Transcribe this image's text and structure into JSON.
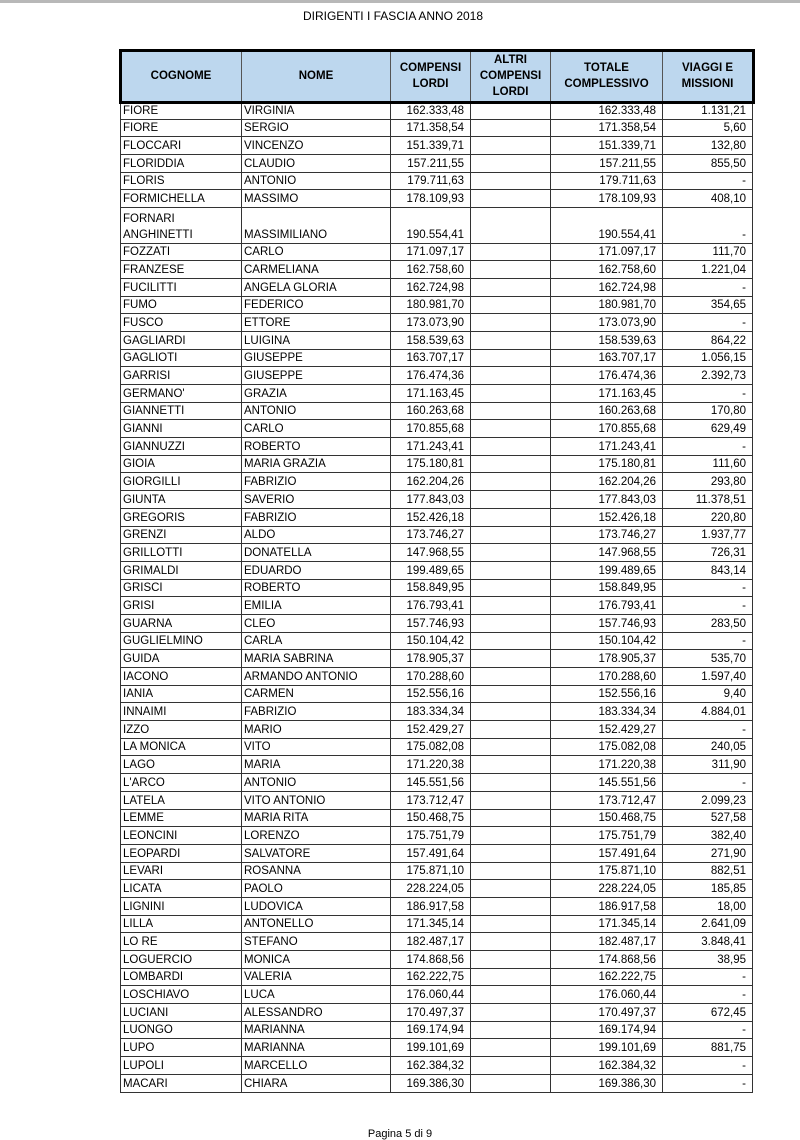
{
  "document": {
    "title": "DIRIGENTI I FASCIA ANNO 2018",
    "footer": "Pagina 5 di 9",
    "header_color": "#bdd7ee"
  },
  "table": {
    "columns": [
      "COGNOME",
      "NOME",
      "COMPENSI LORDI",
      "ALTRI COMPENSI LORDI",
      "TOTALE COMPLESSIVO",
      "VIAGGI E MISSIONI"
    ],
    "rows": [
      [
        "FIORE",
        "VIRGINIA",
        "162.333,48",
        "",
        "162.333,48",
        "1.131,21"
      ],
      [
        "FIORE",
        "SERGIO",
        "171.358,54",
        "",
        "171.358,54",
        "5,60"
      ],
      [
        "FLOCCARI",
        "VINCENZO",
        "151.339,71",
        "",
        "151.339,71",
        "132,80"
      ],
      [
        "FLORIDDIA",
        "CLAUDIO",
        "157.211,55",
        "",
        "157.211,55",
        "855,50"
      ],
      [
        "FLORIS",
        "ANTONIO",
        "179.711,63",
        "",
        "179.711,63",
        "-"
      ],
      [
        "FORMICHELLA",
        "MASSIMO",
        "178.109,93",
        "",
        "178.109,93",
        "408,10"
      ],
      [
        "FORNARI ANGHINETTI",
        "MASSIMILIANO",
        "190.554,41",
        "",
        "190.554,41",
        "-"
      ],
      [
        "FOZZATI",
        "CARLO",
        "171.097,17",
        "",
        "171.097,17",
        "111,70"
      ],
      [
        "FRANZESE",
        "CARMELIANA",
        "162.758,60",
        "",
        "162.758,60",
        "1.221,04"
      ],
      [
        "FUCILITTI",
        "ANGELA GLORIA",
        "162.724,98",
        "",
        "162.724,98",
        "-"
      ],
      [
        "FUMO",
        "FEDERICO",
        "180.981,70",
        "",
        "180.981,70",
        "354,65"
      ],
      [
        "FUSCO",
        "ETTORE",
        "173.073,90",
        "",
        "173.073,90",
        "-"
      ],
      [
        "GAGLIARDI",
        "LUIGINA",
        "158.539,63",
        "",
        "158.539,63",
        "864,22"
      ],
      [
        "GAGLIOTI",
        "GIUSEPPE",
        "163.707,17",
        "",
        "163.707,17",
        "1.056,15"
      ],
      [
        "GARRISI",
        "GIUSEPPE",
        "176.474,36",
        "",
        "176.474,36",
        "2.392,73"
      ],
      [
        "GERMANO'",
        "GRAZIA",
        "171.163,45",
        "",
        "171.163,45",
        "-"
      ],
      [
        "GIANNETTI",
        "ANTONIO",
        "160.263,68",
        "",
        "160.263,68",
        "170,80"
      ],
      [
        "GIANNI",
        "CARLO",
        "170.855,68",
        "",
        "170.855,68",
        "629,49"
      ],
      [
        "GIANNUZZI",
        "ROBERTO",
        "171.243,41",
        "",
        "171.243,41",
        "-"
      ],
      [
        "GIOIA",
        "MARIA GRAZIA",
        "175.180,81",
        "",
        "175.180,81",
        "111,60"
      ],
      [
        "GIORGILLI",
        "FABRIZIO",
        "162.204,26",
        "",
        "162.204,26",
        "293,80"
      ],
      [
        "GIUNTA",
        "SAVERIO",
        "177.843,03",
        "",
        "177.843,03",
        "11.378,51"
      ],
      [
        "GREGORIS",
        "FABRIZIO",
        "152.426,18",
        "",
        "152.426,18",
        "220,80"
      ],
      [
        "GRENZI",
        "ALDO",
        "173.746,27",
        "",
        "173.746,27",
        "1.937,77"
      ],
      [
        "GRILLOTTI",
        "DONATELLA",
        "147.968,55",
        "",
        "147.968,55",
        "726,31"
      ],
      [
        "GRIMALDI",
        "EDUARDO",
        "199.489,65",
        "",
        "199.489,65",
        "843,14"
      ],
      [
        "GRISCI",
        "ROBERTO",
        "158.849,95",
        "",
        "158.849,95",
        "-"
      ],
      [
        "GRISI",
        "EMILIA",
        "176.793,41",
        "",
        "176.793,41",
        "-"
      ],
      [
        "GUARNA",
        "CLEO",
        "157.746,93",
        "",
        "157.746,93",
        "283,50"
      ],
      [
        "GUGLIELMINO",
        "CARLA",
        "150.104,42",
        "",
        "150.104,42",
        "-"
      ],
      [
        "GUIDA",
        "MARIA SABRINA",
        "178.905,37",
        "",
        "178.905,37",
        "535,70"
      ],
      [
        "IACONO",
        "ARMANDO ANTONIO",
        "170.288,60",
        "",
        "170.288,60",
        "1.597,40"
      ],
      [
        "IANIA",
        "CARMEN",
        "152.556,16",
        "",
        "152.556,16",
        "9,40"
      ],
      [
        "INNAIMI",
        "FABRIZIO",
        "183.334,34",
        "",
        "183.334,34",
        "4.884,01"
      ],
      [
        "IZZO",
        "MARIO",
        "152.429,27",
        "",
        "152.429,27",
        "-"
      ],
      [
        "LA MONICA",
        "VITO",
        "175.082,08",
        "",
        "175.082,08",
        "240,05"
      ],
      [
        "LAGO",
        "MARIA",
        "171.220,38",
        "",
        "171.220,38",
        "311,90"
      ],
      [
        "L'ARCO",
        "ANTONIO",
        "145.551,56",
        "",
        "145.551,56",
        "-"
      ],
      [
        "LATELA",
        "VITO ANTONIO",
        "173.712,47",
        "",
        "173.712,47",
        "2.099,23"
      ],
      [
        "LEMME",
        "MARIA RITA",
        "150.468,75",
        "",
        "150.468,75",
        "527,58"
      ],
      [
        "LEONCINI",
        "LORENZO",
        "175.751,79",
        "",
        "175.751,79",
        "382,40"
      ],
      [
        "LEOPARDI",
        "SALVATORE",
        "157.491,64",
        "",
        "157.491,64",
        "271,90"
      ],
      [
        "LEVARI",
        "ROSANNA",
        "175.871,10",
        "",
        "175.871,10",
        "882,51"
      ],
      [
        "LICATA",
        "PAOLO",
        "228.224,05",
        "",
        "228.224,05",
        "185,85"
      ],
      [
        "LIGNINI",
        "LUDOVICA",
        "186.917,58",
        "",
        "186.917,58",
        "18,00"
      ],
      [
        "LILLA",
        "ANTONELLO",
        "171.345,14",
        "",
        "171.345,14",
        "2.641,09"
      ],
      [
        "LO RE",
        "STEFANO",
        "182.487,17",
        "",
        "182.487,17",
        "3.848,41"
      ],
      [
        "LOGUERCIO",
        "MONICA",
        "174.868,56",
        "",
        "174.868,56",
        "38,95"
      ],
      [
        "LOMBARDI",
        "VALERIA",
        "162.222,75",
        "",
        "162.222,75",
        "-"
      ],
      [
        "LOSCHIAVO",
        "LUCA",
        "176.060,44",
        "",
        "176.060,44",
        "-"
      ],
      [
        "LUCIANI",
        "ALESSANDRO",
        "170.497,37",
        "",
        "170.497,37",
        "672,45"
      ],
      [
        "LUONGO",
        "MARIANNA",
        "169.174,94",
        "",
        "169.174,94",
        "-"
      ],
      [
        "LUPO",
        "MARIANNA",
        "199.101,69",
        "",
        "199.101,69",
        "881,75"
      ],
      [
        "LUPOLI",
        "MARCELLO",
        "162.384,32",
        "",
        "162.384,32",
        "-"
      ],
      [
        "MACARI",
        "CHIARA",
        "169.386,30",
        "",
        "169.386,30",
        "-"
      ]
    ]
  }
}
